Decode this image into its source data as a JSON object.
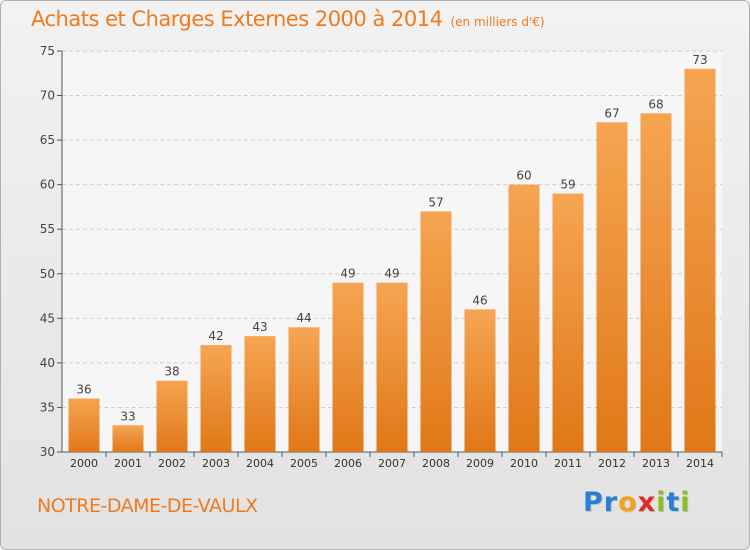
{
  "title": "Achats et Charges Externes 2000 à 2014",
  "unit": "(en milliers d'€)",
  "place": "NOTRE-DAME-DE-VAULX",
  "logo": {
    "letters": [
      {
        "char": "P",
        "color": "#2b7fd1"
      },
      {
        "char": "r",
        "color": "#2b7fd1"
      },
      {
        "char": "o",
        "color": "#f0a21e"
      },
      {
        "char": "x",
        "color": "#e02a2a"
      },
      {
        "char": "i",
        "color": "#8cbf26"
      },
      {
        "char": "t",
        "color": "#2b7fd1"
      },
      {
        "char": "i",
        "color": "#8cbf26"
      }
    ]
  },
  "chart_data": {
    "type": "bar",
    "title": "Achats et Charges Externes 2000 à 2014",
    "subtitle": "(en milliers d'€)",
    "categories": [
      "2000",
      "2001",
      "2002",
      "2003",
      "2004",
      "2005",
      "2006",
      "2007",
      "2008",
      "2009",
      "2010",
      "2011",
      "2012",
      "2013",
      "2014"
    ],
    "values": [
      36,
      33,
      38,
      42,
      43,
      44,
      49,
      49,
      57,
      46,
      60,
      59,
      67,
      68,
      73
    ],
    "ylim": [
      30,
      75
    ],
    "yticks": [
      30,
      35,
      40,
      45,
      50,
      55,
      60,
      65,
      70,
      75
    ],
    "grid": "horizontal dashed",
    "bar_color_top": "#f5a552",
    "bar_color_bottom": "#e07818"
  }
}
